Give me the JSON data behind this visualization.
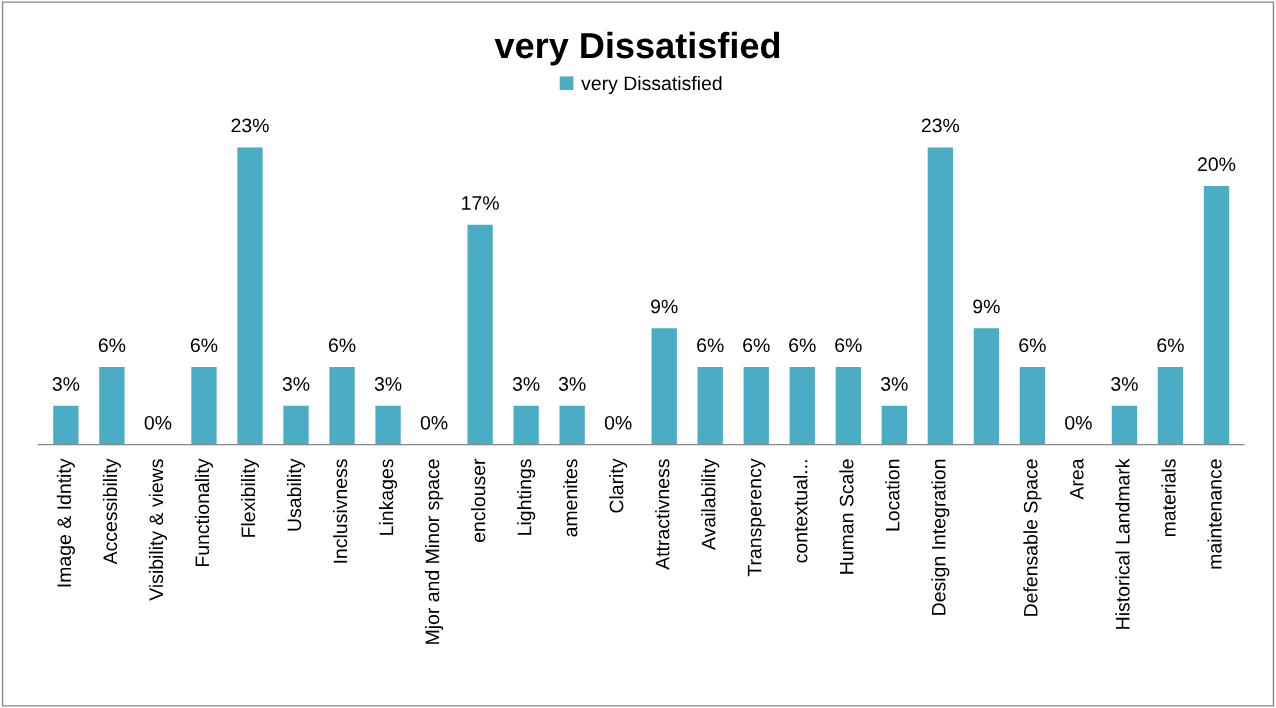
{
  "chart_data": {
    "type": "bar",
    "title": "very Dissatisfied",
    "categories": [
      "Image & Idntity",
      "Accessibility",
      "Visibility & views",
      "Functionality",
      "Flexibility",
      "Usability",
      "Inclusivness",
      "Linkages",
      "Mjor and Minor space",
      "enclouser",
      "Lightings",
      "amenites",
      "Clarity",
      "Attractivness",
      "Availability",
      "Transperency",
      "contextual...",
      "Human Scale",
      "Location",
      "Design Integration",
      null,
      "Defensable Space",
      "Area",
      "Historical Landmark",
      "materials",
      "maintenance"
    ],
    "series": [
      {
        "name": "very Dissatisfied",
        "color": "#4bacc6",
        "values": [
          3,
          6,
          0,
          6,
          23,
          3,
          6,
          3,
          0,
          17,
          3,
          3,
          0,
          9,
          6,
          6,
          6,
          6,
          3,
          23,
          9,
          6,
          0,
          3,
          6,
          20
        ],
        "value_labels": [
          "3%",
          "6%",
          "0%",
          "6%",
          "23%",
          "3%",
          "6%",
          "3%",
          "0%",
          "17%",
          "3%",
          "3%",
          "0%",
          "9%",
          "6%",
          "6%",
          "6%",
          "6%",
          "3%",
          "23%",
          "9%",
          "6%",
          "0%",
          "3%",
          "6%",
          "20%"
        ]
      }
    ],
    "legend": "top",
    "grid": false,
    "tick_labels": "x"
  }
}
